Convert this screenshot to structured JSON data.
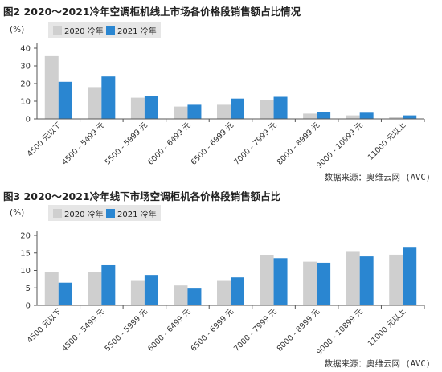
{
  "figures": [
    {
      "title": "图2 2020～2021冷年空调柜机线上市场各价格段销售额占比情况",
      "unit": "(%)",
      "legend": [
        "2020 冷年",
        "2021 冷年"
      ],
      "source": "数据来源：奥维云网 (AVC)"
    },
    {
      "title": "图3 2020～2021冷年线下市场空调柜机各价格段销售额占比",
      "unit": "(%)",
      "legend": [
        "2020 冷年",
        "2021 冷年"
      ],
      "source": "数据来源：奥维云网 (AVC)"
    }
  ],
  "colors": {
    "s2020": "#cfcfcf",
    "s2021": "#2a86d1",
    "axis": "#555555"
  },
  "chart_data": [
    {
      "type": "bar",
      "title": "图2 2020～2021冷年空调柜机线上市场各价格段销售额占比情况",
      "categories": [
        "4500 元以下",
        "4500 - 5499 元",
        "5500 - 5999 元",
        "6000 - 6499 元",
        "6500 - 6999 元",
        "7000 - 7999 元",
        "8000 - 8999 元",
        "9000 - 10999 元",
        "11000 元以上"
      ],
      "series": [
        {
          "name": "2020 冷年",
          "values": [
            35.5,
            18.0,
            12.0,
            7.0,
            8.0,
            10.5,
            3.0,
            2.0,
            1.0
          ]
        },
        {
          "name": "2021 冷年",
          "values": [
            21.0,
            24.0,
            13.0,
            8.0,
            11.5,
            12.5,
            4.0,
            3.5,
            2.0
          ]
        }
      ],
      "ylim": [
        0,
        40
      ],
      "yticks": [
        0,
        10,
        20,
        30,
        40
      ],
      "ylabel": "(%)",
      "legend_position": "top-left",
      "grid": false
    },
    {
      "type": "bar",
      "title": "图3 2020～2021冷年线下市场空调柜机各价格段销售额占比",
      "categories": [
        "4500 元以下",
        "4500 - 5499 元",
        "5500 - 5999 元",
        "6000 - 6499 元",
        "6500 - 6999 元",
        "7000 - 7999 元",
        "8000 - 8999 元",
        "9000 - 10899 元",
        "11000 元以上"
      ],
      "series": [
        {
          "name": "2020 冷年",
          "values": [
            9.5,
            9.5,
            7.0,
            5.7,
            7.0,
            14.3,
            12.5,
            15.3,
            14.5
          ]
        },
        {
          "name": "2021 冷年",
          "values": [
            6.5,
            11.5,
            8.7,
            4.8,
            8.0,
            13.5,
            12.2,
            14.0,
            16.5
          ]
        }
      ],
      "ylim": [
        0,
        20
      ],
      "yticks": [
        0,
        5,
        10,
        15,
        20
      ],
      "ylabel": "(%)",
      "legend_position": "top-left",
      "grid": false
    }
  ]
}
